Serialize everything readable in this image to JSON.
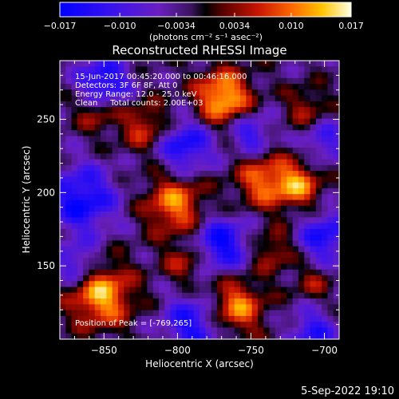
{
  "chart_data": {
    "type": "heatmap",
    "title": "Reconstructed RHESSI Image",
    "xlabel": "Heliocentric X (arcsec)",
    "ylabel": "Heliocentric Y (arcsec)",
    "xlim": [
      -880,
      -690
    ],
    "ylim": [
      100,
      290
    ],
    "xticks": [
      -850,
      -800,
      -750,
      -700
    ],
    "xtick_labels": [
      "−850",
      "−800",
      "−750",
      "−700"
    ],
    "yticks": [
      150,
      200,
      250
    ],
    "ytick_labels": [
      "150",
      "200",
      "250"
    ],
    "colorbar": {
      "min": -0.017,
      "max": 0.017,
      "ticks": [
        -0.017,
        -0.01,
        -0.0034,
        0.0034,
        0.01,
        0.017
      ],
      "tick_labels": [
        "−0.017",
        "−0.010",
        "−0.0034",
        "0.0034",
        "0.010",
        "0.017"
      ],
      "label": "(photons cm⁻² s⁻¹ asec⁻²)"
    },
    "annotations": [
      "15-Jun-2017 00:45:20.000 to 00:46:16.000",
      "Detectors: 3F 6F 8F, Att 0",
      "Energy Range: 12.0 - 25.0 keV",
      "Clean     Total counts: 2.00E+03"
    ],
    "peak_label": "Position of Peak = [-769,265]",
    "peak": [
      -769,
      265
    ],
    "sources": [
      {
        "x": -769,
        "y": 265,
        "amp": 1.0,
        "sigma": 13
      },
      {
        "x": -852,
        "y": 130,
        "amp": 0.95,
        "sigma": 15
      },
      {
        "x": -802,
        "y": 192,
        "amp": 0.8,
        "sigma": 14
      },
      {
        "x": -760,
        "y": 122,
        "amp": 0.8,
        "sigma": 13
      },
      {
        "x": -742,
        "y": 208,
        "amp": 0.7,
        "sigma": 13
      },
      {
        "x": -718,
        "y": 205,
        "amp": 0.75,
        "sigma": 11
      },
      {
        "x": -822,
        "y": 245,
        "amp": 0.55,
        "sigma": 12
      },
      {
        "x": -855,
        "y": 255,
        "amp": 0.45,
        "sigma": 10
      },
      {
        "x": -795,
        "y": 152,
        "amp": 0.45,
        "sigma": 10
      },
      {
        "x": -735,
        "y": 160,
        "amp": 0.45,
        "sigma": 10
      },
      {
        "x": -708,
        "y": 138,
        "amp": 0.35,
        "sigma": 9
      },
      {
        "x": -712,
        "y": 258,
        "amp": 0.4,
        "sigma": 10
      }
    ],
    "negatives": [
      {
        "x": -865,
        "y": 195,
        "amp": -0.8,
        "sigma": 16
      },
      {
        "x": -795,
        "y": 232,
        "amp": -0.75,
        "sigma": 13
      },
      {
        "x": -850,
        "y": 275,
        "amp": -0.8,
        "sigma": 12
      },
      {
        "x": -790,
        "y": 110,
        "amp": -0.7,
        "sigma": 14
      },
      {
        "x": -770,
        "y": 165,
        "amp": -0.8,
        "sigma": 13
      },
      {
        "x": -700,
        "y": 170,
        "amp": -0.7,
        "sigma": 12
      },
      {
        "x": -750,
        "y": 240,
        "amp": -0.6,
        "sigma": 10
      },
      {
        "x": -708,
        "y": 105,
        "amp": -0.6,
        "sigma": 11
      },
      {
        "x": -868,
        "y": 150,
        "amp": -0.6,
        "sigma": 10
      },
      {
        "x": -700,
        "y": 235,
        "amp": -0.5,
        "sigma": 10
      }
    ]
  },
  "footer": {
    "timestamp": "5-Sep-2022 19:10"
  }
}
